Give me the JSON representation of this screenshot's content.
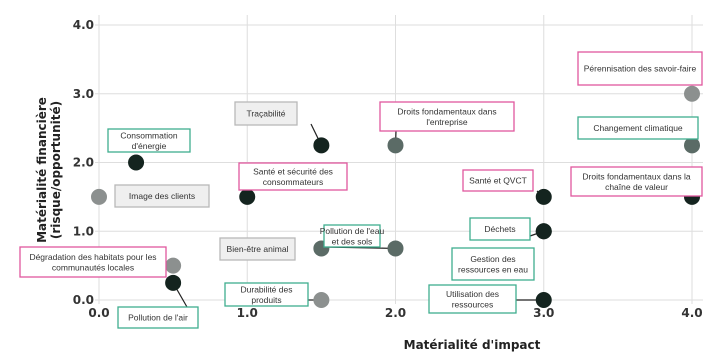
{
  "chart_data": {
    "type": "scatter",
    "xlabel": "Matérialité d'impact",
    "ylabel": [
      "Matérialité financière",
      "(risque/opportunité)"
    ],
    "xlim": [
      0,
      4
    ],
    "ylim": [
      0,
      4
    ],
    "x_ticks": [
      "0.0",
      "1.0",
      "2.0",
      "3.0",
      "4.0"
    ],
    "y_ticks": [
      "0.0",
      "1.0",
      "2.0",
      "3.0",
      "4.0"
    ],
    "grid": true,
    "colors": {
      "dark": "#14241f",
      "mid": "#5b6b66",
      "light": "#8c908f",
      "border_teal": "#3fae8e",
      "border_pink": "#e0579e",
      "border_gray": "#b8b8b8",
      "box_fill_gray": "#efefef"
    },
    "points": [
      {
        "label": "Pérennisation des savoir-faire",
        "x": 4.0,
        "y": 3.0,
        "shade": "light",
        "border": "pink"
      },
      {
        "label": "Changement climatique",
        "x": 4.0,
        "y": 2.25,
        "shade": "mid",
        "border": "teal"
      },
      {
        "label": "Droits fondamentaux dans la chaîne de valeur",
        "x": 4.0,
        "y": 1.5,
        "shade": "dark",
        "border": "pink"
      },
      {
        "label": "Traçabilité",
        "x": 1.5,
        "y": 2.25,
        "shade": "dark",
        "border": "gray"
      },
      {
        "label": "Droits fondamentaux dans l'entreprise",
        "x": 2.0,
        "y": 2.25,
        "shade": "mid",
        "border": "pink"
      },
      {
        "label": "Consommation d'énergie",
        "x": 0.25,
        "y": 2.0,
        "shade": "dark",
        "border": "teal"
      },
      {
        "label": "Image des clients",
        "x": 0.0,
        "y": 1.5,
        "shade": "light",
        "border": "gray"
      },
      {
        "label": "Santé et sécurité des consommateurs",
        "x": 1.0,
        "y": 1.5,
        "shade": "dark",
        "border": "pink"
      },
      {
        "label": "Santé et QVCT",
        "x": 3.0,
        "y": 1.5,
        "shade": "dark",
        "border": "pink"
      },
      {
        "label": "Déchets",
        "x": 3.0,
        "y": 1.0,
        "shade": "dark",
        "border": "teal"
      },
      {
        "label": "Gestion des ressources en eau",
        "x": 3.0,
        "y": 1.0,
        "shade": "dark",
        "border": "teal"
      },
      {
        "label": "Bien-être animal",
        "x": 1.5,
        "y": 0.75,
        "shade": "mid",
        "border": "gray"
      },
      {
        "label": "Pollution de l'eau et des sols",
        "x": 2.0,
        "y": 0.75,
        "shade": "mid",
        "border": "teal"
      },
      {
        "label": "Dégradation des habitats pour les communautés locales",
        "x": 0.5,
        "y": 0.5,
        "shade": "light",
        "border": "pink"
      },
      {
        "label": "Pollution de l'air",
        "x": 0.5,
        "y": 0.25,
        "shade": "dark",
        "border": "teal"
      },
      {
        "label": "Durabilité des produits",
        "x": 1.5,
        "y": 0.0,
        "shade": "light",
        "border": "teal"
      },
      {
        "label": "Utilisation des ressources",
        "x": 3.0,
        "y": 0.0,
        "shade": "dark",
        "border": "teal"
      }
    ]
  }
}
